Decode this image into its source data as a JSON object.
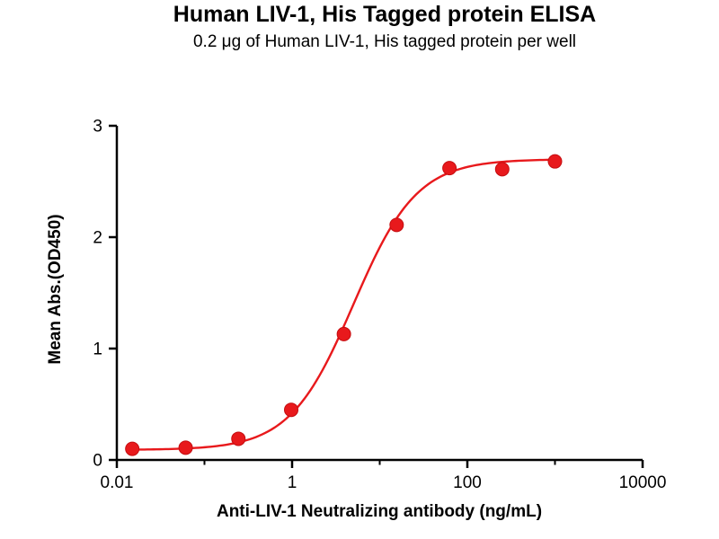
{
  "chart_data": {
    "type": "scatter",
    "title": "Human LIV-1, His Tagged protein ELISA",
    "subtitle": "0.2 μg of Human LIV-1, His tagged protein per well",
    "xlabel": "Anti-LIV-1 Neutralizing antibody (ng/mL)",
    "ylabel": "Mean Abs.(OD450)",
    "xscale": "log",
    "xlim": [
      0.01,
      10000
    ],
    "ylim": [
      0,
      3
    ],
    "x_ticks": [
      0.01,
      1,
      100,
      10000
    ],
    "x_tick_labels": [
      "0.01",
      "1",
      "100",
      "10000"
    ],
    "x_minor_ticks": [
      0.1,
      10,
      1000
    ],
    "y_ticks": [
      0,
      1,
      2,
      3
    ],
    "y_tick_labels": [
      "0",
      "1",
      "2",
      "3"
    ],
    "grid": false,
    "legend": "none",
    "point_color": "#e8191c",
    "curve_color": "#e8191c",
    "axis_color": "#000000",
    "x": [
      0.015,
      0.061,
      0.244,
      0.977,
      3.9,
      15.6,
      62.5,
      250,
      1000
    ],
    "y": [
      0.1,
      0.11,
      0.19,
      0.45,
      1.13,
      2.11,
      2.62,
      2.61,
      2.68
    ],
    "fit": {
      "type": "4PL",
      "bottom": 0.09,
      "top": 2.7,
      "ec50": 5.0,
      "hill": 1.2
    }
  }
}
